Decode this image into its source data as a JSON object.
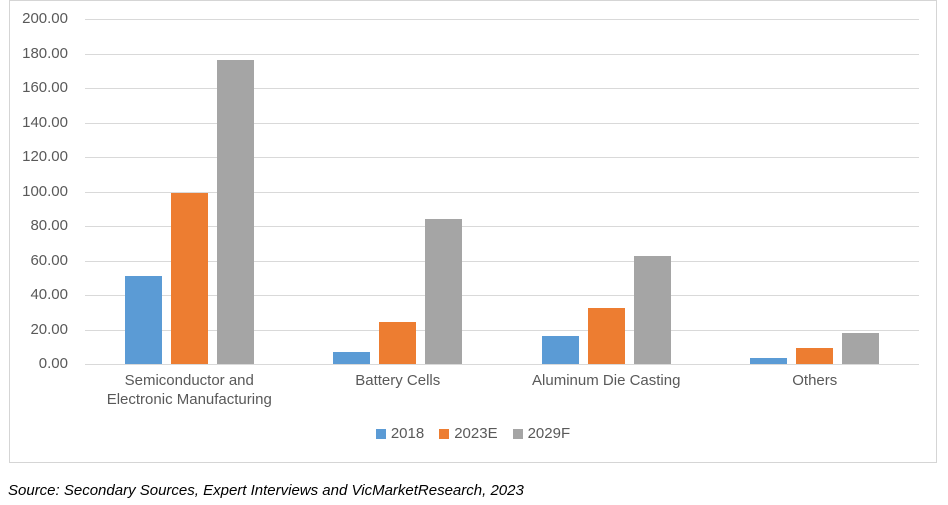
{
  "chart_data": {
    "type": "bar",
    "title": "",
    "categories": [
      "Semiconductor and Electronic Manufacturing",
      "Battery Cells",
      "Aluminum Die Casting",
      "Others"
    ],
    "series": [
      {
        "name": "2018",
        "color": "#5B9BD5",
        "values": [
          51.0,
          6.9,
          16.5,
          3.7
        ]
      },
      {
        "name": "2023E",
        "color": "#ED7D31",
        "values": [
          99.2,
          24.6,
          32.6,
          9.0
        ]
      },
      {
        "name": "2029F",
        "color": "#A5A5A5",
        "values": [
          176.4,
          84.2,
          62.9,
          17.7
        ]
      }
    ],
    "xlabel": "",
    "ylabel": "",
    "ylim": [
      0,
      200
    ],
    "ytick_step": 20,
    "ytick_labels": [
      "200.00",
      "180.00",
      "160.00",
      "140.00",
      "120.00",
      "100.00",
      "80.00",
      "60.00",
      "40.00",
      "20.00",
      "0.00"
    ],
    "grid": true,
    "legend_position": "bottom"
  },
  "colors": {
    "gridline": "#d9d9d9",
    "chart_border": "#d5d5d5",
    "axis_text": "#595959"
  },
  "footer": {
    "source_text": "Source: Secondary Sources, Expert Interviews and VicMarketResearch, 2023"
  }
}
